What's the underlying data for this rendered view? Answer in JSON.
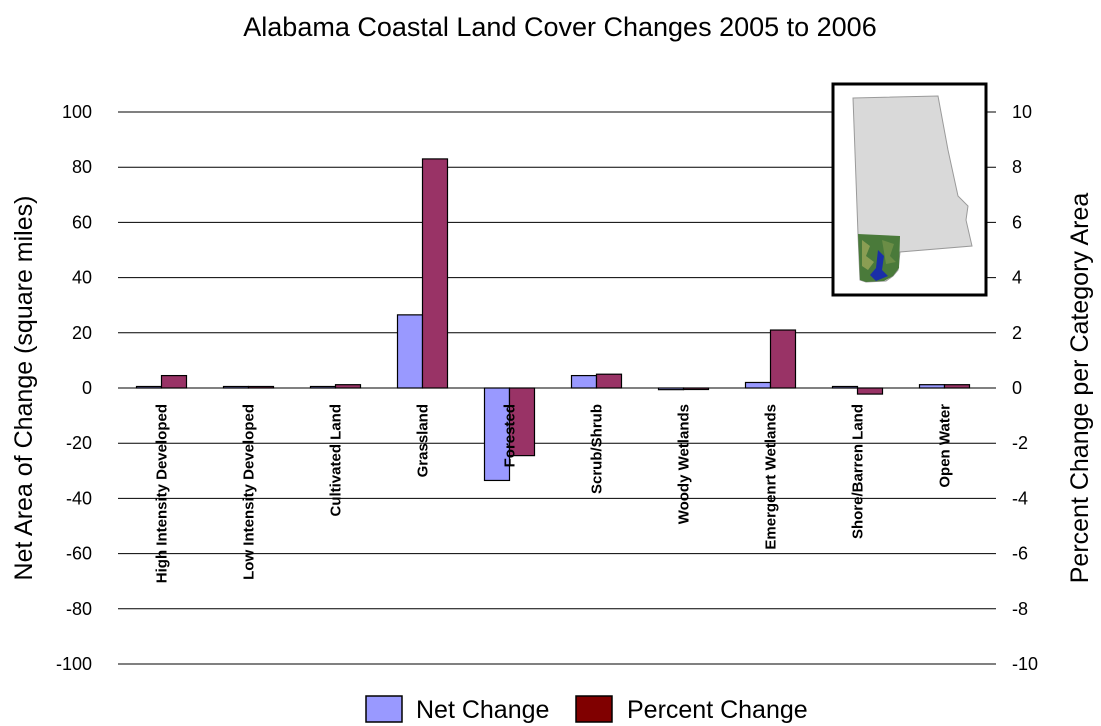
{
  "chart_data": {
    "type": "bar",
    "title": "Alabama Coastal Land Cover Changes 2005 to 2006",
    "ylabel": "Net Area of Change (square miles)",
    "y2label": "Percent Change per Category Area",
    "ylim": [
      -100,
      100
    ],
    "y2lim": [
      -10,
      10
    ],
    "y_ticks": [
      100,
      80,
      60,
      40,
      20,
      0,
      -20,
      -40,
      -60,
      -80,
      -100
    ],
    "y2_ticks": [
      10,
      8,
      6,
      4,
      2,
      0,
      -2,
      -4,
      -6,
      -8,
      -10
    ],
    "grid": true,
    "legend_position": "bottom",
    "categories": [
      "High Intensity Developed",
      "Low Intensity Developed",
      "Cultivated Land",
      "Grassland",
      "Forested",
      "Scrub/Shrub",
      "Woody Wetlands",
      "Emergenrt Wetlands",
      "Shore/Barren Land",
      "Open Water"
    ],
    "series": [
      {
        "name": "Net Change",
        "axis": "left",
        "color": "#9999ff",
        "values": [
          0.5,
          0.3,
          0.5,
          26.5,
          -33.5,
          4.5,
          -0.6,
          2,
          0,
          1.2
        ]
      },
      {
        "name": "Percent Change",
        "axis": "right",
        "color": "#993366",
        "values": [
          0.45,
          0.05,
          0.12,
          8.3,
          -2.45,
          0.5,
          -0.05,
          2.1,
          -0.22,
          0.12
        ]
      }
    ],
    "legend_swatch_colors": [
      "#9999ff",
      "#800000"
    ]
  }
}
